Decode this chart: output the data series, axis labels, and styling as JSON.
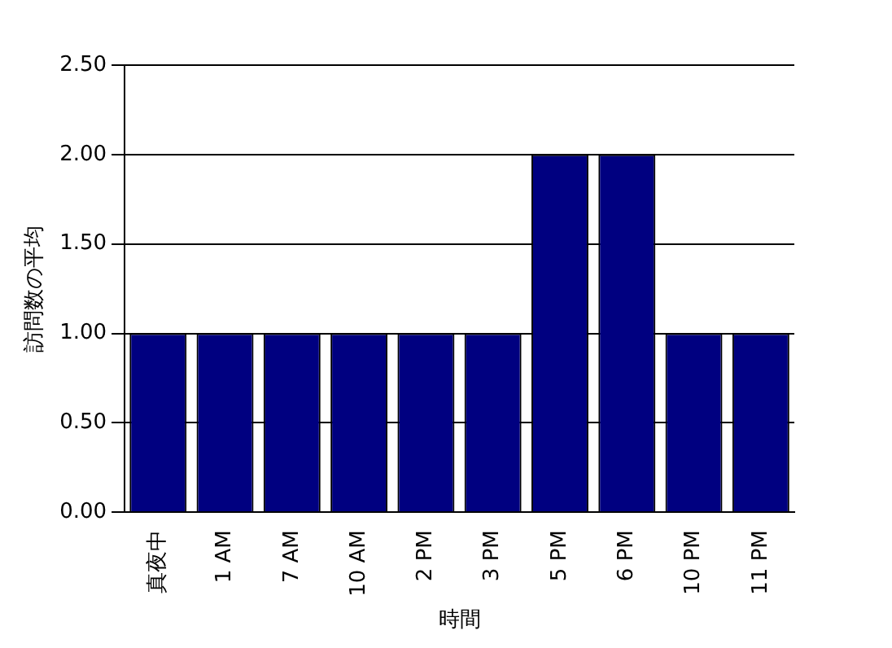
{
  "chart_data": {
    "type": "bar",
    "xlabel": "時間",
    "ylabel": "訪問数の平均",
    "categories": [
      "真夜中",
      "1 AM",
      "7 AM",
      "10 AM",
      "2 PM",
      "3 PM",
      "5 PM",
      "6 PM",
      "10 PM",
      "11 PM"
    ],
    "values": [
      1,
      1,
      1,
      1,
      1,
      1,
      2,
      2,
      1,
      1
    ],
    "color": "#000080",
    "ylim": [
      0,
      2.5
    ],
    "yticks": [
      {
        "value": 0,
        "label": "0.00"
      },
      {
        "value": 0.5,
        "label": "0.50"
      },
      {
        "value": 1,
        "label": "1.00"
      },
      {
        "value": 1.5,
        "label": "1.50"
      },
      {
        "value": 2,
        "label": "2.00"
      },
      {
        "value": 2.5,
        "label": "2.50"
      }
    ],
    "grid": "y",
    "legend": false
  }
}
